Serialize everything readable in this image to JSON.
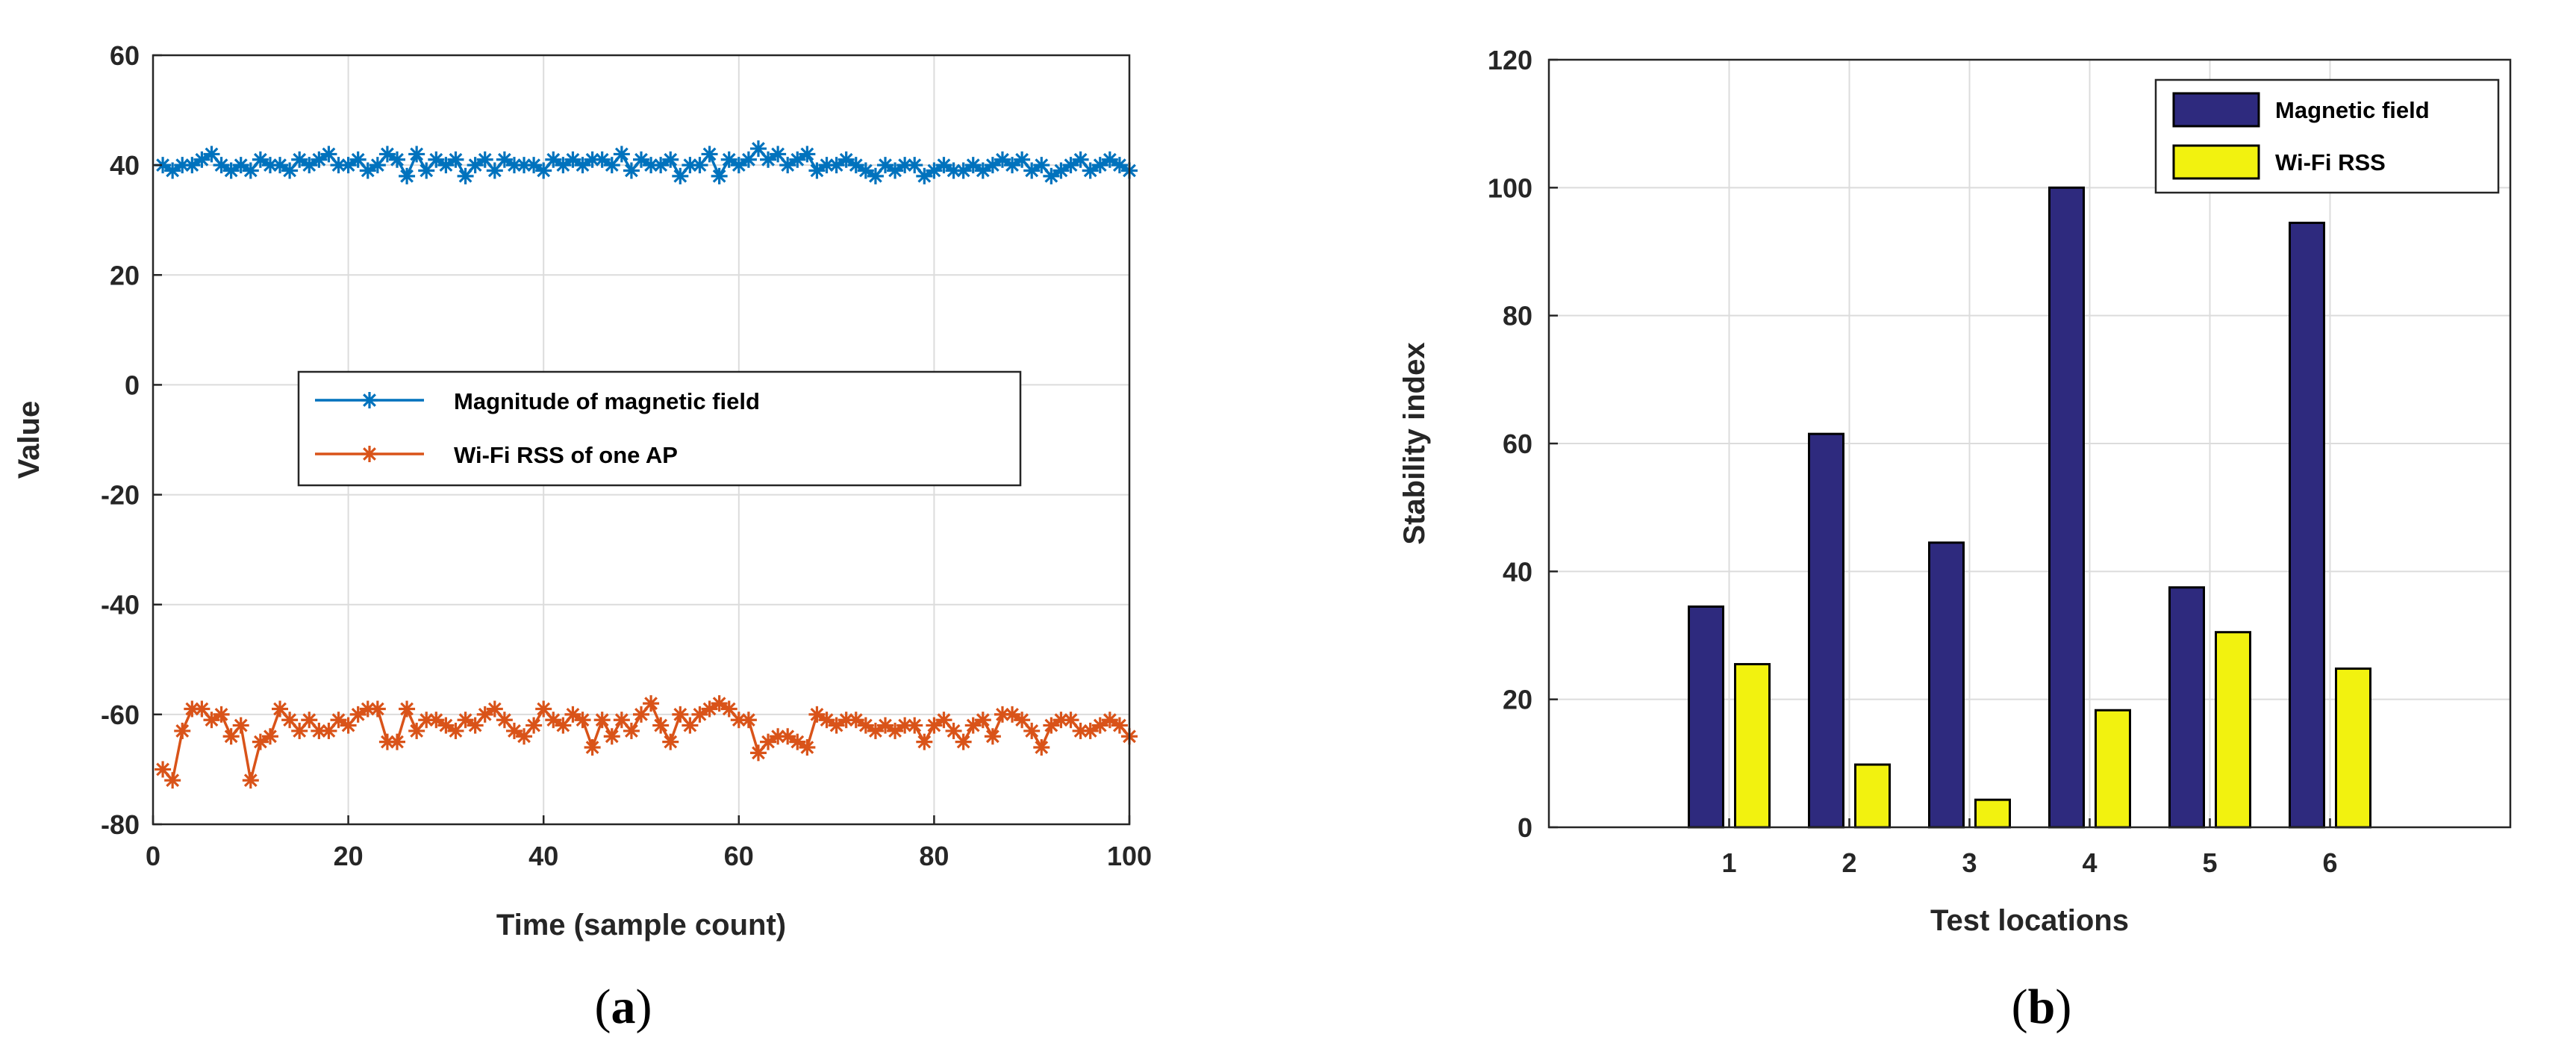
{
  "chart_data": [
    {
      "type": "line",
      "panel_label": "a",
      "xlabel": "Time (sample count)",
      "ylabel": "Value",
      "xlim": [
        0,
        100
      ],
      "ylim": [
        -80,
        60
      ],
      "xticks": [
        0,
        20,
        40,
        60,
        80,
        100
      ],
      "yticks": [
        -80,
        -60,
        -40,
        -20,
        0,
        20,
        40,
        60
      ],
      "grid": true,
      "legend_position": "center",
      "marker": "asterisk",
      "series": [
        {
          "name": "Magnitude of magnetic field",
          "color": "#0072BD",
          "x": [
            1,
            2,
            3,
            4,
            5,
            6,
            7,
            8,
            9,
            10,
            11,
            12,
            13,
            14,
            15,
            16,
            17,
            18,
            19,
            20,
            21,
            22,
            23,
            24,
            25,
            26,
            27,
            28,
            29,
            30,
            31,
            32,
            33,
            34,
            35,
            36,
            37,
            38,
            39,
            40,
            41,
            42,
            43,
            44,
            45,
            46,
            47,
            48,
            49,
            50,
            51,
            52,
            53,
            54,
            55,
            56,
            57,
            58,
            59,
            60,
            61,
            62,
            63,
            64,
            65,
            66,
            67,
            68,
            69,
            70,
            71,
            72,
            73,
            74,
            75,
            76,
            77,
            78,
            79,
            80,
            81,
            82,
            83,
            84,
            85,
            86,
            87,
            88,
            89,
            90,
            91,
            92,
            93,
            94,
            95,
            96,
            97,
            98,
            99,
            100
          ],
          "values": [
            40,
            39,
            40,
            40,
            41,
            42,
            40,
            39,
            40,
            39,
            41,
            40,
            40,
            39,
            41,
            40,
            41,
            42,
            40,
            40,
            41,
            39,
            40,
            42,
            41,
            38,
            42,
            39,
            41,
            40,
            41,
            38,
            40,
            41,
            39,
            41,
            40,
            40,
            40,
            39,
            41,
            40,
            41,
            40,
            41,
            41,
            40,
            42,
            39,
            41,
            40,
            40,
            41,
            38,
            40,
            40,
            42,
            38,
            41,
            40,
            41,
            43,
            41,
            42,
            40,
            41,
            42,
            39,
            40,
            40,
            41,
            40,
            39,
            38,
            40,
            39,
            40,
            40,
            38,
            39,
            40,
            39,
            39,
            40,
            39,
            40,
            41,
            40,
            41,
            39,
            40,
            38,
            39,
            40,
            41,
            39,
            40,
            41,
            40,
            39
          ]
        },
        {
          "name": "Wi-Fi RSS of one AP",
          "color": "#D95319",
          "x": [
            1,
            2,
            3,
            4,
            5,
            6,
            7,
            8,
            9,
            10,
            11,
            12,
            13,
            14,
            15,
            16,
            17,
            18,
            19,
            20,
            21,
            22,
            23,
            24,
            25,
            26,
            27,
            28,
            29,
            30,
            31,
            32,
            33,
            34,
            35,
            36,
            37,
            38,
            39,
            40,
            41,
            42,
            43,
            44,
            45,
            46,
            47,
            48,
            49,
            50,
            51,
            52,
            53,
            54,
            55,
            56,
            57,
            58,
            59,
            60,
            61,
            62,
            63,
            64,
            65,
            66,
            67,
            68,
            69,
            70,
            71,
            72,
            73,
            74,
            75,
            76,
            77,
            78,
            79,
            80,
            81,
            82,
            83,
            84,
            85,
            86,
            87,
            88,
            89,
            90,
            91,
            92,
            93,
            94,
            95,
            96,
            97,
            98,
            99,
            100
          ],
          "values": [
            -70,
            -72,
            -63,
            -59,
            -59,
            -61,
            -60,
            -64,
            -62,
            -72,
            -65,
            -64,
            -59,
            -61,
            -63,
            -61,
            -63,
            -63,
            -61,
            -62,
            -60,
            -59,
            -59,
            -65,
            -65,
            -59,
            -63,
            -61,
            -61,
            -62,
            -63,
            -61,
            -62,
            -60,
            -59,
            -61,
            -63,
            -64,
            -62,
            -59,
            -61,
            -62,
            -60,
            -61,
            -66,
            -61,
            -64,
            -61,
            -63,
            -60,
            -58,
            -62,
            -65,
            -60,
            -62,
            -60,
            -59,
            -58,
            -59,
            -61,
            -61,
            -67,
            -65,
            -64,
            -64,
            -65,
            -66,
            -60,
            -61,
            -62,
            -61,
            -61,
            -62,
            -63,
            -62,
            -63,
            -62,
            -62,
            -65,
            -62,
            -61,
            -63,
            -65,
            -62,
            -61,
            -64,
            -60,
            -60,
            -61,
            -63,
            -66,
            -62,
            -61,
            -61,
            -63,
            -63,
            -62,
            -61,
            -62,
            -64
          ]
        }
      ]
    },
    {
      "type": "bar",
      "panel_label": "b",
      "xlabel": "Test locations",
      "ylabel": "Stability index",
      "ylim": [
        0,
        120
      ],
      "yticks": [
        0,
        20,
        40,
        60,
        80,
        100,
        120
      ],
      "categories": [
        "1",
        "2",
        "3",
        "4",
        "5",
        "6"
      ],
      "grid": true,
      "legend_position": "top-right",
      "series": [
        {
          "name": "Magnetic field",
          "color": "#2E2A7E",
          "values": [
            34.5,
            61.5,
            44.5,
            100,
            37.5,
            94.5
          ]
        },
        {
          "name": "Wi-Fi RSS",
          "color": "#F2F20F",
          "values": [
            25.5,
            9.8,
            4.3,
            18.3,
            30.5,
            24.8
          ]
        }
      ]
    }
  ]
}
